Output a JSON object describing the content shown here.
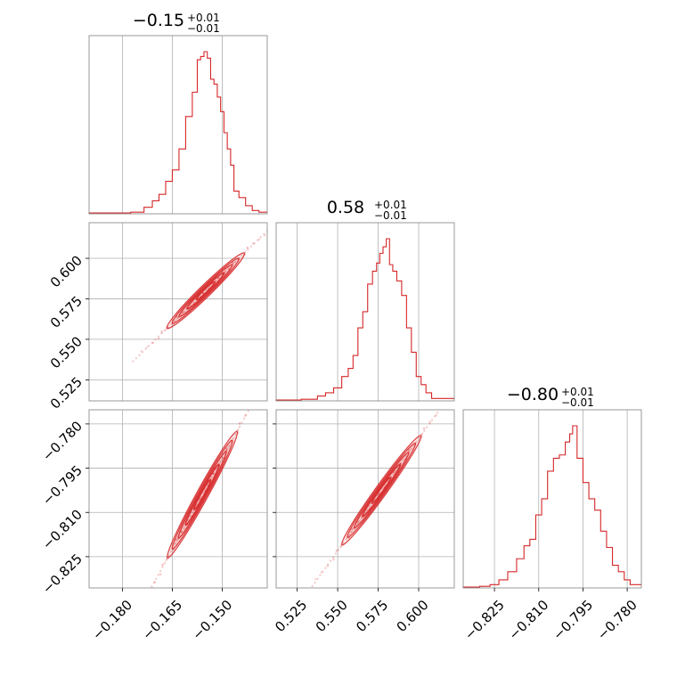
{
  "chart_data": {
    "type": "corner",
    "color": "#d62728",
    "parameters": [
      {
        "title_main": "−0.15",
        "title_sup": "+0.01",
        "title_sub": "−0.01",
        "range": [
          -0.19,
          -0.1365
        ],
        "ticks": [
          -0.18,
          -0.165,
          -0.15
        ],
        "tick_labels": [
          "−0.180",
          "−0.165",
          "−0.150"
        ],
        "hist_x": [
          -0.18,
          -0.175,
          -0.172,
          -0.17,
          -0.168,
          -0.166,
          -0.164,
          -0.162,
          -0.16,
          -0.158,
          -0.157,
          -0.156,
          -0.155,
          -0.154,
          -0.153,
          -0.152,
          -0.151,
          -0.15,
          -0.149,
          -0.148,
          -0.147,
          -0.146,
          -0.144,
          -0.142,
          -0.14,
          -0.138
        ],
        "hist_y": [
          0.005,
          0.01,
          0.04,
          0.08,
          0.12,
          0.2,
          0.27,
          0.4,
          0.6,
          0.75,
          0.95,
          0.97,
          1.0,
          0.96,
          0.83,
          0.8,
          0.72,
          0.63,
          0.5,
          0.4,
          0.3,
          0.14,
          0.1,
          0.05,
          0.02,
          0.01
        ]
      },
      {
        "title_main": "0.58",
        "title_sup": "+0.01",
        "title_sub": "−0.01",
        "range": [
          0.512,
          0.622
        ],
        "ticks": [
          0.525,
          0.55,
          0.575,
          0.6
        ],
        "tick_labels": [
          "0.525",
          "0.550",
          "0.575",
          "0.600"
        ],
        "hist_x": [
          0.52,
          0.535,
          0.54,
          0.545,
          0.55,
          0.555,
          0.558,
          0.561,
          0.564,
          0.567,
          0.57,
          0.573,
          0.575,
          0.577,
          0.579,
          0.581,
          0.583,
          0.585,
          0.588,
          0.591,
          0.594,
          0.597,
          0.6,
          0.603,
          0.606,
          0.61
        ],
        "hist_y": [
          0.005,
          0.01,
          0.03,
          0.05,
          0.08,
          0.15,
          0.2,
          0.28,
          0.45,
          0.55,
          0.72,
          0.8,
          0.85,
          0.91,
          0.95,
          1.0,
          0.84,
          0.8,
          0.74,
          0.65,
          0.45,
          0.3,
          0.15,
          0.1,
          0.05,
          0.015
        ]
      },
      {
        "title_main": "−0.80",
        "title_sup": "+0.01",
        "title_sub": "−0.01",
        "range": [
          -0.8356,
          -0.7752
        ],
        "ticks": [
          -0.825,
          -0.81,
          -0.795,
          -0.78
        ],
        "tick_labels": [
          "−0.825",
          "−0.810",
          "−0.795",
          "−0.780"
        ],
        "hist_x": [
          -0.832,
          -0.828,
          -0.825,
          -0.822,
          -0.819,
          -0.816,
          -0.814,
          -0.812,
          -0.81,
          -0.808,
          -0.806,
          -0.804,
          -0.802,
          -0.8,
          -0.799,
          -0.798,
          -0.796,
          -0.794,
          -0.792,
          -0.79,
          -0.788,
          -0.786,
          -0.784,
          -0.782,
          -0.78,
          -0.778
        ],
        "hist_y": [
          0.005,
          0.01,
          0.02,
          0.05,
          0.1,
          0.18,
          0.26,
          0.3,
          0.45,
          0.55,
          0.72,
          0.8,
          0.82,
          0.9,
          0.95,
          1.0,
          0.8,
          0.65,
          0.55,
          0.48,
          0.35,
          0.25,
          0.14,
          0.1,
          0.05,
          0.02
        ]
      }
    ],
    "pairs": [
      {
        "row": 1,
        "col": 0,
        "x": [
          -0.165,
          -0.145
        ],
        "y": [
          0.56,
          0.6
        ],
        "width": 0.004
      },
      {
        "row": 2,
        "col": 0,
        "x": [
          -0.165,
          -0.147
        ],
        "y": [
          -0.8225,
          -0.7855
        ],
        "width": 0.0042
      },
      {
        "row": 2,
        "col": 1,
        "x": [
          0.556,
          0.598
        ],
        "y": [
          -0.8185,
          -0.7865
        ],
        "width": 0.0035
      }
    ]
  }
}
